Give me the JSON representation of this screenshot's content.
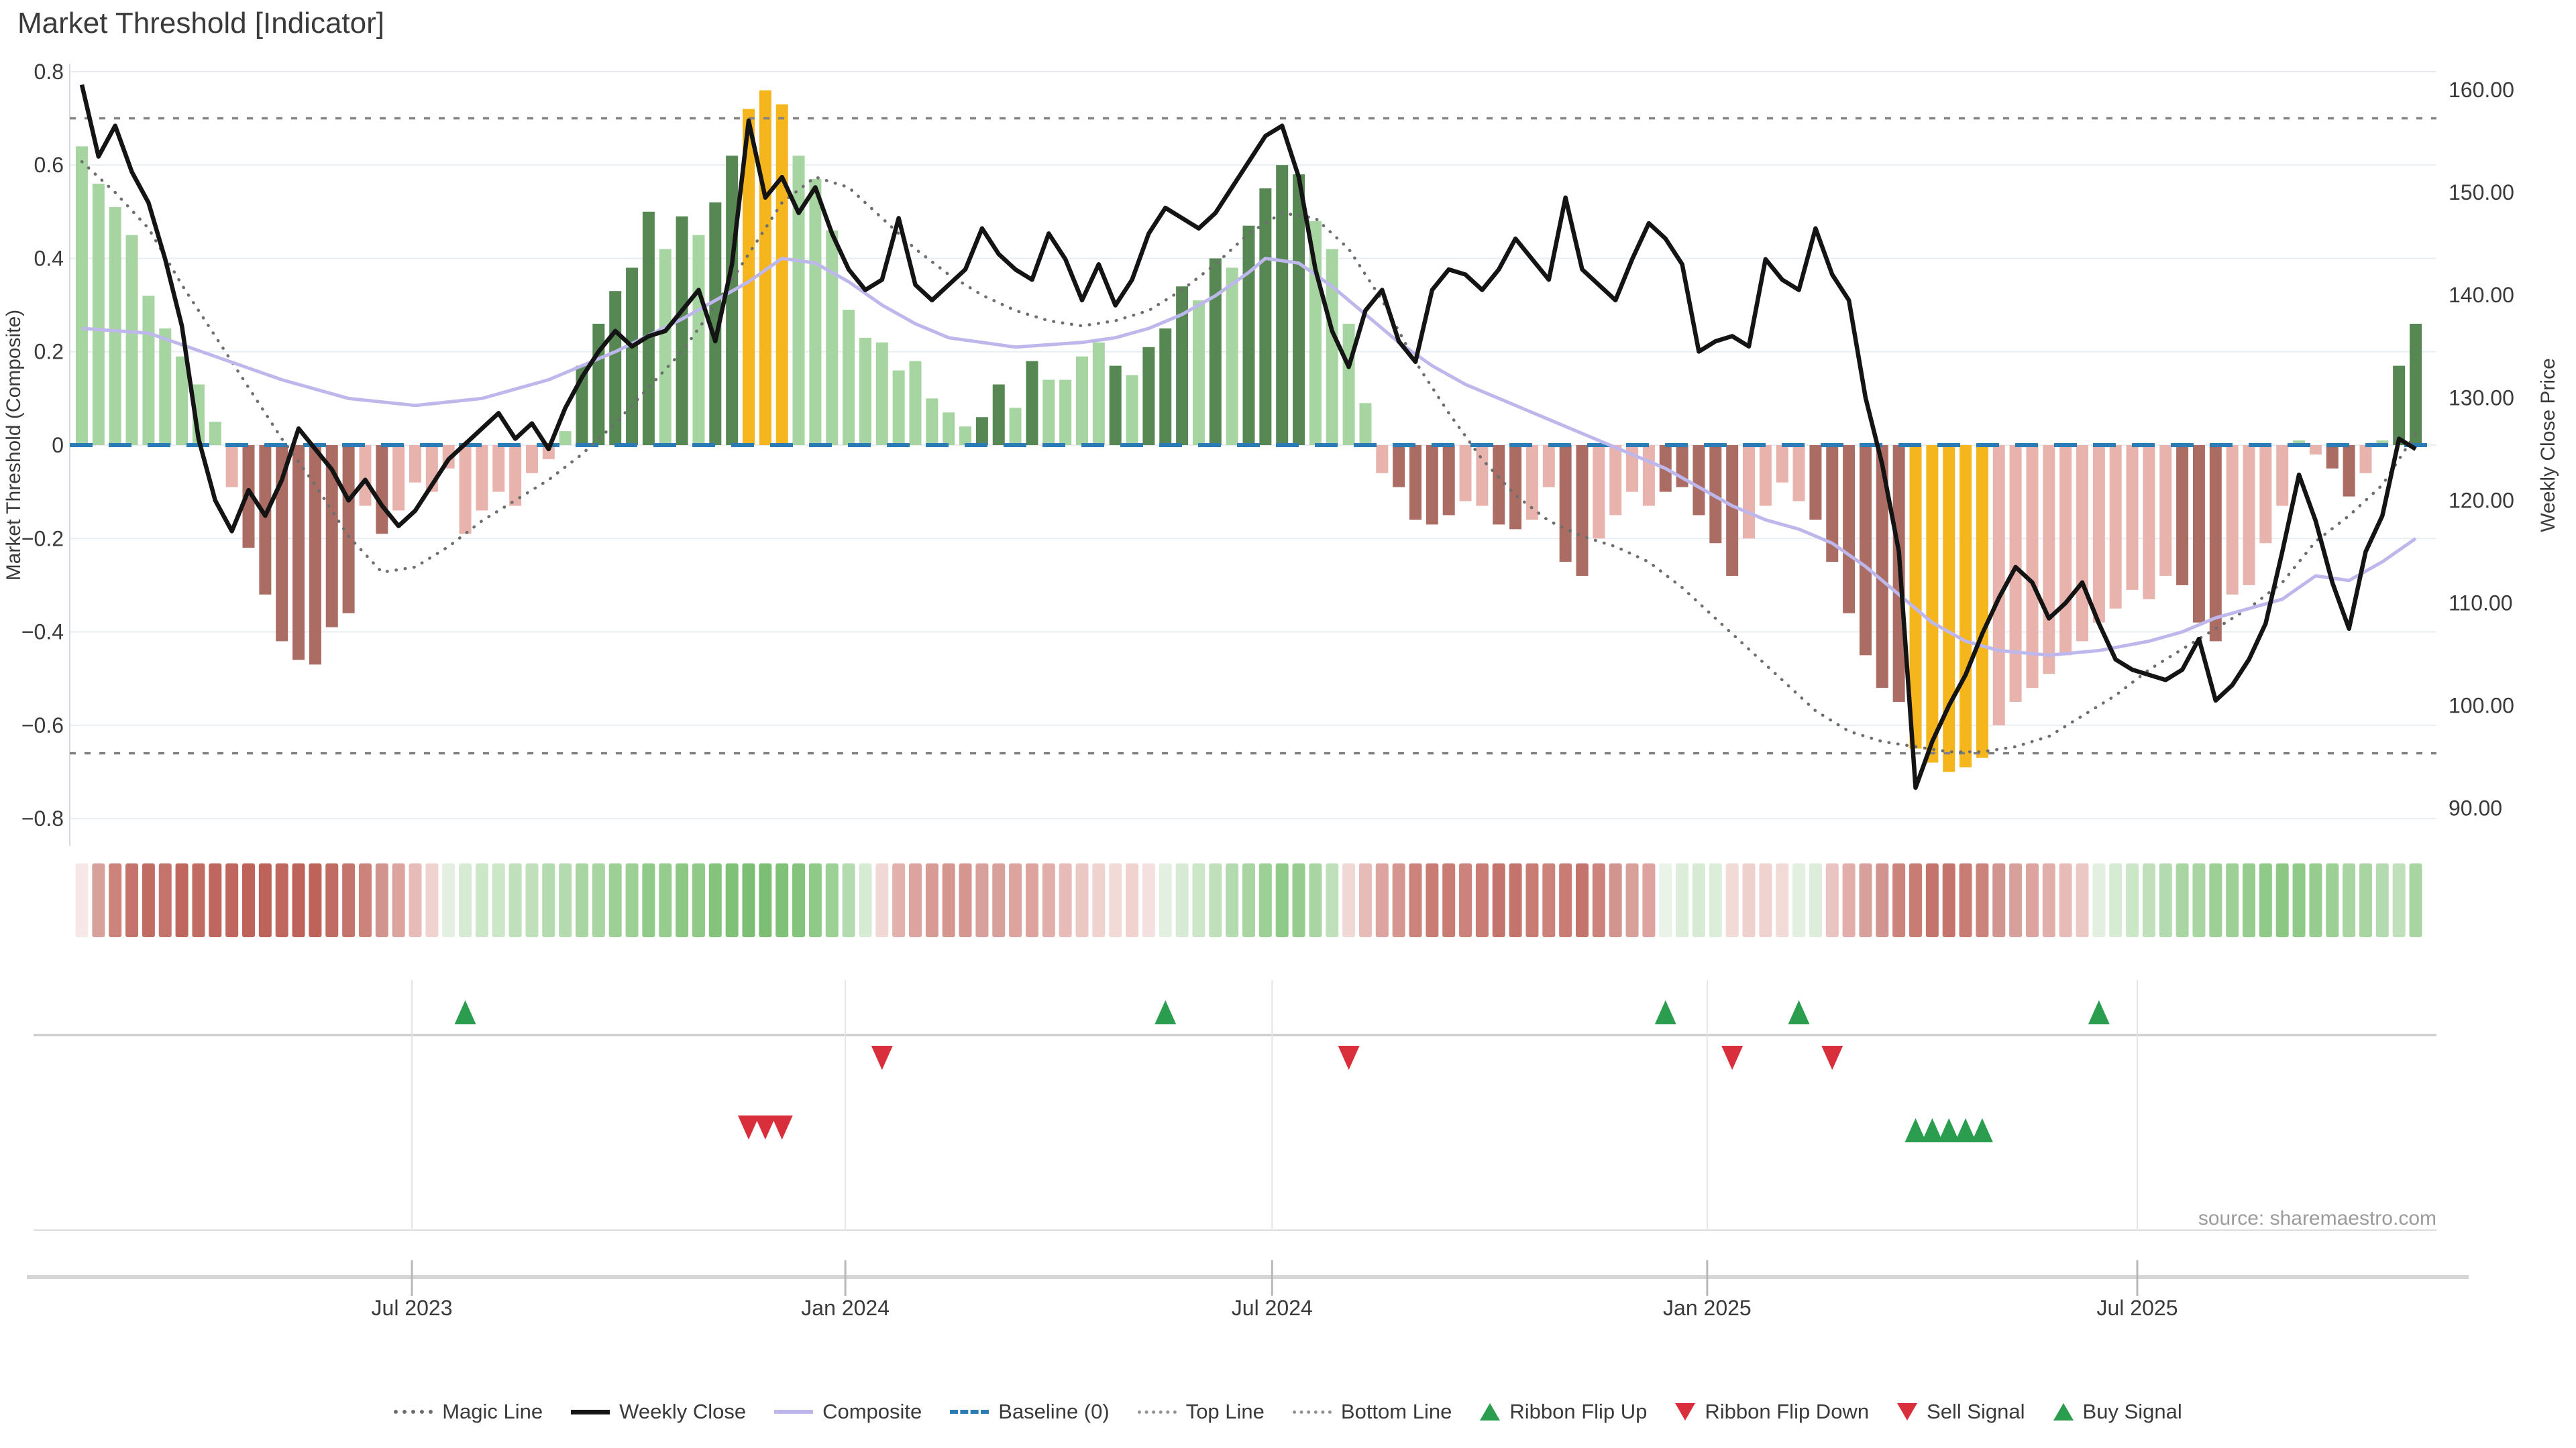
{
  "title": "Market Threshold [Indicator]",
  "source_note": "source: sharemaestro.com",
  "axes": {
    "left": {
      "title": "Market Threshold (Composite)",
      "ticks": [
        "0.8",
        "0.6",
        "0.4",
        "0.2",
        "0",
        "−0.2",
        "−0.4",
        "−0.6",
        "−0.8"
      ],
      "tick_values": [
        0.8,
        0.6,
        0.4,
        0.2,
        0,
        -0.2,
        -0.4,
        -0.6,
        -0.8
      ]
    },
    "right": {
      "title": "Weekly Close Price",
      "ticks": [
        "160.00",
        "150.00",
        "140.00",
        "130.00",
        "120.00",
        "110.00",
        "100.00",
        "90.00"
      ],
      "tick_values": [
        160,
        150,
        140,
        130,
        120,
        110,
        100,
        90
      ]
    },
    "x": {
      "ticks": [
        "Jul 2023",
        "Jan 2024",
        "Jul 2024",
        "Jan 2025",
        "Jul 2025"
      ],
      "tick_weeks": [
        19.8,
        45.8,
        71.4,
        97.5,
        123.3
      ]
    }
  },
  "legend": {
    "items": [
      {
        "label": "Magic Line",
        "swatch": "dot-dark"
      },
      {
        "label": "Weekly Close",
        "swatch": "solid-black"
      },
      {
        "label": "Composite",
        "swatch": "solid-purple"
      },
      {
        "label": "Baseline (0)",
        "swatch": "dash-blue"
      },
      {
        "label": "Top Line",
        "swatch": "dot-gray"
      },
      {
        "label": "Bottom Line",
        "swatch": "dot-gray"
      },
      {
        "label": "Ribbon Flip Up",
        "swatch": "tri-up"
      },
      {
        "label": "Ribbon Flip Down",
        "swatch": "tri-down"
      },
      {
        "label": "Sell Signal",
        "swatch": "tri-down"
      },
      {
        "label": "Buy Signal",
        "swatch": "tri-up"
      }
    ]
  },
  "chart_data": {
    "type": "bar",
    "subtype": "weekly composite indicator with overlaid price lines",
    "weeks": 141,
    "left_ylim": [
      -0.8,
      0.8
    ],
    "right_ylim": [
      90,
      160
    ],
    "baseline": 0,
    "top_line": 0.7,
    "bottom_line": -0.66,
    "palette": {
      "lg": "#a7d5a1",
      "dg": "#578854",
      "yl": "#f5b51d",
      "lp": "#e9b3ad",
      "dr": "#aa6c63"
    },
    "line_colors": {
      "weekly_close": "#141414",
      "composite": "#bdb7ec",
      "magic": "#6e6e6e",
      "baseline": "#2b7cb4",
      "top_bottom": "#828282",
      "signal_up": "#2a9d4e",
      "signal_down": "#d92f3d"
    },
    "bars": {
      "values": [
        0.64,
        0.56,
        0.51,
        0.45,
        0.32,
        0.25,
        0.19,
        0.13,
        0.05,
        -0.09,
        -0.22,
        -0.32,
        -0.42,
        -0.46,
        -0.47,
        -0.39,
        -0.36,
        -0.13,
        -0.19,
        -0.14,
        -0.08,
        -0.1,
        -0.05,
        -0.19,
        -0.14,
        -0.1,
        -0.13,
        -0.06,
        -0.03,
        0.03,
        0.17,
        0.26,
        0.33,
        0.38,
        0.5,
        0.42,
        0.49,
        0.45,
        0.52,
        0.62,
        0.72,
        0.76,
        0.73,
        0.62,
        0.57,
        0.46,
        0.29,
        0.23,
        0.22,
        0.16,
        0.18,
        0.1,
        0.07,
        0.04,
        0.06,
        0.13,
        0.08,
        0.18,
        0.14,
        0.14,
        0.19,
        0.22,
        0.17,
        0.15,
        0.21,
        0.25,
        0.34,
        0.31,
        0.4,
        0.38,
        0.47,
        0.55,
        0.6,
        0.58,
        0.48,
        0.42,
        0.26,
        0.09,
        -0.06,
        -0.09,
        -0.16,
        -0.17,
        -0.15,
        -0.12,
        -0.13,
        -0.17,
        -0.18,
        -0.16,
        -0.09,
        -0.25,
        -0.28,
        -0.2,
        -0.15,
        -0.1,
        -0.13,
        -0.1,
        -0.09,
        -0.15,
        -0.21,
        -0.28,
        -0.2,
        -0.13,
        -0.08,
        -0.12,
        -0.16,
        -0.25,
        -0.36,
        -0.45,
        -0.52,
        -0.55,
        -0.65,
        -0.68,
        -0.7,
        -0.69,
        -0.67,
        -0.6,
        -0.55,
        -0.52,
        -0.49,
        -0.45,
        -0.42,
        -0.38,
        -0.35,
        -0.31,
        -0.33,
        -0.28,
        -0.3,
        -0.38,
        -0.42,
        -0.32,
        -0.3,
        -0.21,
        -0.13,
        0.01,
        -0.02,
        -0.05,
        -0.11,
        -0.06,
        0.01,
        0.17,
        0.26
      ],
      "colors": [
        "lg",
        "lg",
        "lg",
        "lg",
        "lg",
        "lg",
        "lg",
        "lg",
        "lg",
        "lp",
        "dr",
        "dr",
        "dr",
        "dr",
        "dr",
        "dr",
        "dr",
        "lp",
        "dr",
        "lp",
        "lp",
        "lp",
        "lp",
        "lp",
        "lp",
        "lp",
        "lp",
        "lp",
        "lp",
        "lg",
        "dg",
        "dg",
        "dg",
        "dg",
        "dg",
        "lg",
        "dg",
        "lg",
        "dg",
        "dg",
        "yl",
        "yl",
        "yl",
        "lg",
        "lg",
        "lg",
        "lg",
        "lg",
        "lg",
        "lg",
        "lg",
        "lg",
        "lg",
        "lg",
        "dg",
        "dg",
        "lg",
        "dg",
        "lg",
        "lg",
        "lg",
        "lg",
        "dg",
        "lg",
        "dg",
        "dg",
        "dg",
        "lg",
        "dg",
        "lg",
        "dg",
        "dg",
        "dg",
        "dg",
        "lg",
        "lg",
        "lg",
        "lg",
        "lp",
        "dr",
        "dr",
        "dr",
        "dr",
        "lp",
        "lp",
        "dr",
        "dr",
        "lp",
        "lp",
        "dr",
        "dr",
        "lp",
        "lp",
        "lp",
        "lp",
        "dr",
        "dr",
        "dr",
        "dr",
        "dr",
        "lp",
        "lp",
        "lp",
        "lp",
        "dr",
        "dr",
        "dr",
        "dr",
        "dr",
        "dr",
        "yl",
        "yl",
        "yl",
        "yl",
        "yl",
        "lp",
        "lp",
        "lp",
        "lp",
        "lp",
        "lp",
        "lp",
        "lp",
        "lp",
        "lp",
        "lp",
        "dr",
        "dr",
        "dr",
        "lp",
        "lp",
        "lp",
        "lp",
        "lg",
        "lp",
        "dr",
        "dr",
        "lp",
        "lg",
        "dg",
        "dg"
      ]
    },
    "weekly_close": [
      160.5,
      153.5,
      156.5,
      152,
      149,
      143.5,
      137,
      126,
      120,
      117,
      121,
      118.5,
      122,
      127,
      125,
      123,
      120,
      122,
      119.5,
      117.5,
      119,
      121.5,
      124,
      125.5,
      127,
      128.5,
      126,
      127.5,
      125,
      129,
      132,
      134.5,
      136.5,
      135,
      136,
      136.5,
      138.5,
      140.5,
      135.5,
      143,
      157,
      149.5,
      151.5,
      148,
      150.5,
      146,
      142.5,
      140.5,
      141.5,
      147.5,
      141,
      139.5,
      141,
      142.5,
      146.5,
      144,
      142.5,
      141.5,
      146,
      143.5,
      139.5,
      143,
      139,
      141.5,
      146,
      148.5,
      147.5,
      146.5,
      148,
      150.5,
      153,
      155.5,
      156.5,
      151.5,
      142.5,
      136.5,
      133,
      138.5,
      140.5,
      135.5,
      133.5,
      140.5,
      142.5,
      142,
      140.5,
      142.5,
      145.5,
      143.5,
      141.5,
      149.5,
      142.5,
      141,
      139.5,
      143.5,
      147,
      145.5,
      143,
      134.5,
      135.5,
      136,
      135,
      143.5,
      141.5,
      140.5,
      146.5,
      142,
      139.5,
      130,
      123.5,
      115,
      92,
      96.5,
      100,
      103,
      107,
      110.5,
      113.5,
      112,
      108.5,
      110,
      112,
      108,
      104.5,
      103.5,
      103,
      102.5,
      103.5,
      106.5,
      100.5,
      102,
      104.5,
      108,
      115,
      122.5,
      118,
      112,
      107.5,
      115,
      118.5,
      126,
      125
    ],
    "composite_keypoints": [
      [
        0,
        0.25
      ],
      [
        4,
        0.24
      ],
      [
        8,
        0.19
      ],
      [
        12,
        0.14
      ],
      [
        16,
        0.1
      ],
      [
        20,
        0.085
      ],
      [
        24,
        0.1
      ],
      [
        28,
        0.14
      ],
      [
        32,
        0.2
      ],
      [
        36,
        0.27
      ],
      [
        40,
        0.35
      ],
      [
        42,
        0.4
      ],
      [
        44,
        0.39
      ],
      [
        46,
        0.35
      ],
      [
        48,
        0.3
      ],
      [
        50,
        0.26
      ],
      [
        52,
        0.23
      ],
      [
        56,
        0.21
      ],
      [
        60,
        0.22
      ],
      [
        62,
        0.23
      ],
      [
        64,
        0.25
      ],
      [
        66,
        0.28
      ],
      [
        68,
        0.32
      ],
      [
        70,
        0.37
      ],
      [
        71,
        0.4
      ],
      [
        73,
        0.39
      ],
      [
        75,
        0.34
      ],
      [
        77,
        0.28
      ],
      [
        79,
        0.22
      ],
      [
        81,
        0.17
      ],
      [
        83,
        0.13
      ],
      [
        85,
        0.1
      ],
      [
        87,
        0.07
      ],
      [
        89,
        0.04
      ],
      [
        91,
        0.01
      ],
      [
        93,
        -0.02
      ],
      [
        95,
        -0.05
      ],
      [
        97,
        -0.09
      ],
      [
        99,
        -0.13
      ],
      [
        101,
        -0.16
      ],
      [
        103,
        -0.18
      ],
      [
        105,
        -0.21
      ],
      [
        107,
        -0.26
      ],
      [
        109,
        -0.32
      ],
      [
        111,
        -0.38
      ],
      [
        113,
        -0.42
      ],
      [
        115,
        -0.44
      ],
      [
        118,
        -0.45
      ],
      [
        121,
        -0.44
      ],
      [
        124,
        -0.42
      ],
      [
        126,
        -0.4
      ],
      [
        128,
        -0.37
      ],
      [
        130,
        -0.35
      ],
      [
        132,
        -0.33
      ],
      [
        134,
        -0.28
      ],
      [
        136,
        -0.29
      ],
      [
        138,
        -0.25
      ],
      [
        140,
        -0.2
      ]
    ],
    "magic_line_keypoints": [
      [
        0,
        153
      ],
      [
        2,
        150
      ],
      [
        4,
        146.5
      ],
      [
        6,
        141
      ],
      [
        8,
        136
      ],
      [
        10,
        131
      ],
      [
        12,
        126
      ],
      [
        14,
        121.5
      ],
      [
        16,
        116.5
      ],
      [
        18,
        113
      ],
      [
        20,
        113.5
      ],
      [
        22,
        115.5
      ],
      [
        24,
        118
      ],
      [
        26,
        120
      ],
      [
        28,
        122
      ],
      [
        30,
        124.5
      ],
      [
        32,
        127.5
      ],
      [
        34,
        131
      ],
      [
        36,
        134.5
      ],
      [
        38,
        139
      ],
      [
        40,
        144
      ],
      [
        42,
        149
      ],
      [
        44,
        151.5
      ],
      [
        46,
        150.5
      ],
      [
        48,
        147.5
      ],
      [
        50,
        144.5
      ],
      [
        52,
        142
      ],
      [
        54,
        140
      ],
      [
        56,
        138.5
      ],
      [
        58,
        137.5
      ],
      [
        60,
        137
      ],
      [
        62,
        137.5
      ],
      [
        64,
        138.5
      ],
      [
        66,
        140.5
      ],
      [
        68,
        143
      ],
      [
        70,
        146
      ],
      [
        72,
        148
      ],
      [
        74,
        147.5
      ],
      [
        76,
        144.5
      ],
      [
        78,
        139.5
      ],
      [
        80,
        133.5
      ],
      [
        82,
        128.5
      ],
      [
        84,
        124
      ],
      [
        86,
        120.5
      ],
      [
        88,
        118
      ],
      [
        90,
        116.5
      ],
      [
        92,
        115.5
      ],
      [
        94,
        114
      ],
      [
        96,
        111.5
      ],
      [
        98,
        108.5
      ],
      [
        100,
        105.5
      ],
      [
        102,
        102.5
      ],
      [
        104,
        99.5
      ],
      [
        106,
        97.5
      ],
      [
        108,
        96.5
      ],
      [
        110,
        96
      ],
      [
        112,
        95.5
      ],
      [
        114,
        95.5
      ],
      [
        116,
        96
      ],
      [
        118,
        97
      ],
      [
        120,
        99
      ],
      [
        122,
        101
      ],
      [
        124,
        103.5
      ],
      [
        126,
        105.5
      ],
      [
        128,
        107.5
      ],
      [
        130,
        109.5
      ],
      [
        132,
        112
      ],
      [
        134,
        116
      ],
      [
        136,
        118.5
      ],
      [
        138,
        121.5
      ],
      [
        140,
        126.5
      ]
    ],
    "ribbon_colors": [
      "#f7e7e6",
      "#d8a09b",
      "#cc837c",
      "#c4746c",
      "#c06c63",
      "#c4746c",
      "#bf675e",
      "#c06c63",
      "#bf675e",
      "#bf675e",
      "#bd635a",
      "#bd635a",
      "#bf675e",
      "#bd635a",
      "#bd635a",
      "#c06c63",
      "#c4746c",
      "#cc837c",
      "#d2948e",
      "#dba49f",
      "#e7bcb8",
      "#f0d2cf",
      "#e3f0e1",
      "#d7ebd4",
      "#cce6c8",
      "#cce6c8",
      "#c0e0bb",
      "#c0e0bb",
      "#b4dbaf",
      "#b4dbaf",
      "#a8d5a2",
      "#a8d5a2",
      "#9cd095",
      "#9cd095",
      "#90ca89",
      "#96cd8f",
      "#8cc784",
      "#90ca89",
      "#84c37c",
      "#80c178",
      "#7cbf74",
      "#7cbf74",
      "#80c178",
      "#84c37c",
      "#90ca89",
      "#9cd095",
      "#b4dbaf",
      "#d7ebd4",
      "#f0d8d5",
      "#e3b1ac",
      "#dda49f",
      "#d89a94",
      "#d59690",
      "#d59690",
      "#d8a09b",
      "#d8a09b",
      "#dda49f",
      "#dda49f",
      "#e2aeaa",
      "#e7bcb8",
      "#ecc8c5",
      "#f0d2cf",
      "#f2dad7",
      "#f0d2cf",
      "#f4e0de",
      "#e3f0e1",
      "#d7ebd4",
      "#cce6c8",
      "#c0e0bb",
      "#b4dbaf",
      "#a8d5a2",
      "#9cd095",
      "#90ca89",
      "#96cd8f",
      "#a8d5a2",
      "#c0e0bb",
      "#f0d8d5",
      "#e7bcb8",
      "#dda49f",
      "#d59690",
      "#cc837c",
      "#c87c74",
      "#c87c74",
      "#cc837c",
      "#c87c74",
      "#c4746c",
      "#c4746c",
      "#c87c74",
      "#cc837c",
      "#c87c74",
      "#c4746c",
      "#cc837c",
      "#d2948e",
      "#d8a09b",
      "#dda49f",
      "#e9f3e8",
      "#dcedd9",
      "#d7ebd4",
      "#dcedd9",
      "#f2dad7",
      "#eed0cd",
      "#f0d2cf",
      "#f2dad7",
      "#e3f0e1",
      "#dcedd9",
      "#eac4c0",
      "#e2aeaa",
      "#d8a09b",
      "#d2948e",
      "#cc837c",
      "#c87c74",
      "#c4746c",
      "#c4746c",
      "#c87c74",
      "#cc837c",
      "#d2948e",
      "#d8a09b",
      "#dda49f",
      "#e2aeaa",
      "#e7bcb8",
      "#ecc8c5",
      "#e3f0e1",
      "#d7ebd4",
      "#cce6c8",
      "#c0e0bb",
      "#b4dbaf",
      "#a8d5a2",
      "#a8d5a2",
      "#9cd095",
      "#9cd095",
      "#96cd8f",
      "#90ca89",
      "#8cc784",
      "#90ca89",
      "#96cd8f",
      "#9cd095",
      "#a8d5a2",
      "#a8d5a2",
      "#b4dbaf",
      "#c0e0bb",
      "#a8d5a2"
    ],
    "signals": {
      "ribbon_flip_up": [
        23,
        65,
        95,
        103,
        121
      ],
      "ribbon_flip_down": [
        48,
        76,
        99,
        105
      ],
      "sell": [
        40,
        41,
        42
      ],
      "buy": [
        110,
        111,
        112,
        113,
        114
      ]
    }
  }
}
